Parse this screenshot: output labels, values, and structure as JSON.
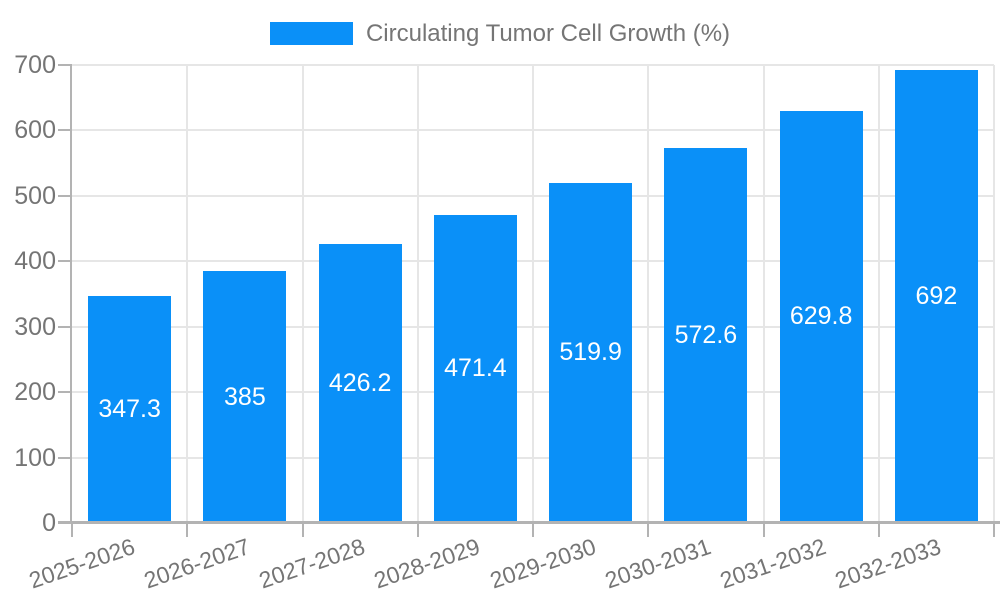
{
  "legend": {
    "label": "Circulating Tumor Cell Growth (%)"
  },
  "chart_data": {
    "type": "bar",
    "title": "Circulating Tumor Cell Growth (%)",
    "series_name": "Circulating Tumor Cell Growth (%)",
    "categories": [
      "2025-2026",
      "2026-2027",
      "2027-2028",
      "2028-2029",
      "2029-2030",
      "2030-2031",
      "2031-2032",
      "2032-2033"
    ],
    "values": [
      347.3,
      385,
      426.2,
      471.4,
      519.9,
      572.6,
      629.8,
      692
    ],
    "value_labels": [
      "347.3",
      "385",
      "426.2",
      "471.4",
      "519.9",
      "572.6",
      "629.8",
      "692"
    ],
    "xlabel": "",
    "ylabel": "",
    "ylim": [
      0,
      700
    ],
    "yticks": [
      0,
      100,
      200,
      300,
      400,
      500,
      600,
      700
    ],
    "grid": true,
    "legend_position": "top-center",
    "x_label_rotation_deg": -19,
    "colors": {
      "bar": "#0a90f8",
      "value_label": "#ffffff",
      "axis_text": "#757575",
      "axis_line": "#b3b3b3",
      "grid": "#e6e6e6"
    }
  }
}
